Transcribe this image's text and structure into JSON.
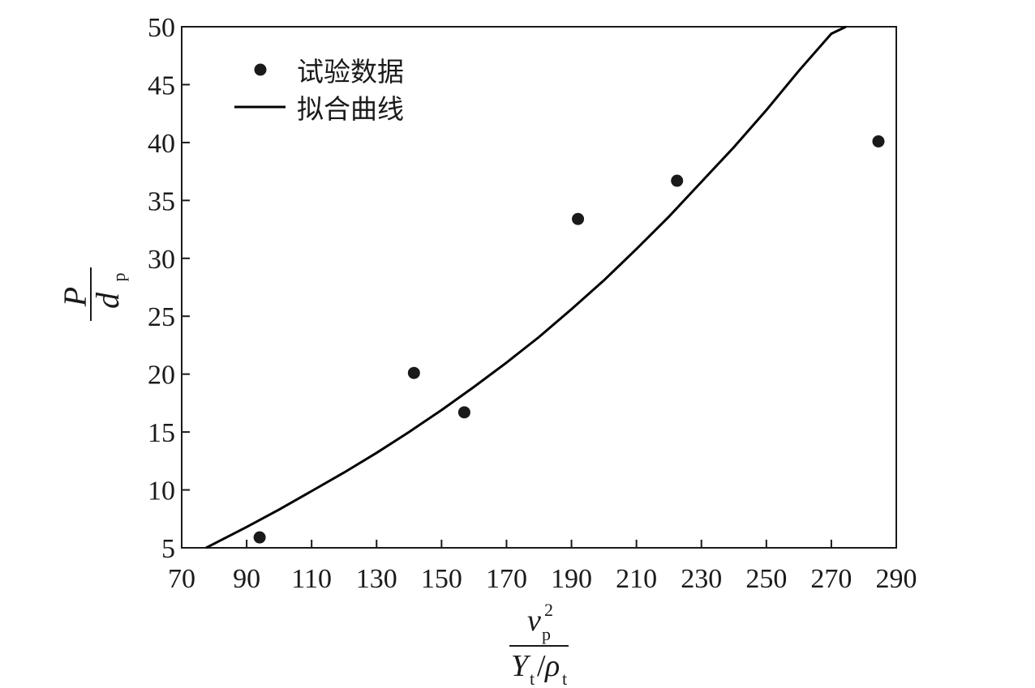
{
  "chart_data": {
    "type": "scatter",
    "title": "",
    "xlabel": {
      "numerator_base": "v",
      "numerator_sup": "2",
      "numerator_sub": "p",
      "denominator_Y": "Y",
      "denominator_Y_sub": "t",
      "denominator_slash": "/",
      "denominator_rho": "ρ",
      "denominator_rho_sub": "t"
    },
    "ylabel": {
      "numerator": "P",
      "denominator_base": "d",
      "denominator_sub": "p"
    },
    "xlim": [
      70,
      290
    ],
    "ylim": [
      5,
      50
    ],
    "xticks": [
      70,
      90,
      110,
      130,
      150,
      170,
      190,
      210,
      230,
      250,
      270,
      290
    ],
    "yticks": [
      5,
      10,
      15,
      20,
      25,
      30,
      35,
      40,
      45,
      50
    ],
    "xtick_labels": [
      "70",
      "90",
      "110",
      "130",
      "150",
      "170",
      "190",
      "210",
      "230",
      "250",
      "270",
      "290"
    ],
    "ytick_labels": [
      "5",
      "10",
      "15",
      "20",
      "25",
      "30",
      "35",
      "40",
      "45",
      "50"
    ],
    "grid": false,
    "legend_position": "top-left",
    "series": [
      {
        "name": "试验数据",
        "kind": "scatter",
        "color": "#1a1a1a",
        "x": [
          94,
          141.5,
          157,
          192,
          222.5,
          284.5
        ],
        "y": [
          5.9,
          20.1,
          16.7,
          33.4,
          36.7,
          40.1
        ]
      },
      {
        "name": "拟合曲线",
        "kind": "line",
        "color": "#000000",
        "x": [
          77.5,
          90,
          100,
          110,
          120,
          130,
          140,
          150,
          160,
          170,
          180,
          190,
          200,
          210,
          220,
          230,
          240,
          250,
          260,
          270,
          274.5
        ],
        "y": [
          5.0,
          6.8,
          8.3,
          9.9,
          11.5,
          13.2,
          15.0,
          16.9,
          18.9,
          21.0,
          23.2,
          25.6,
          28.1,
          30.8,
          33.6,
          36.6,
          39.6,
          42.8,
          46.2,
          49.4,
          50.0
        ]
      }
    ]
  }
}
